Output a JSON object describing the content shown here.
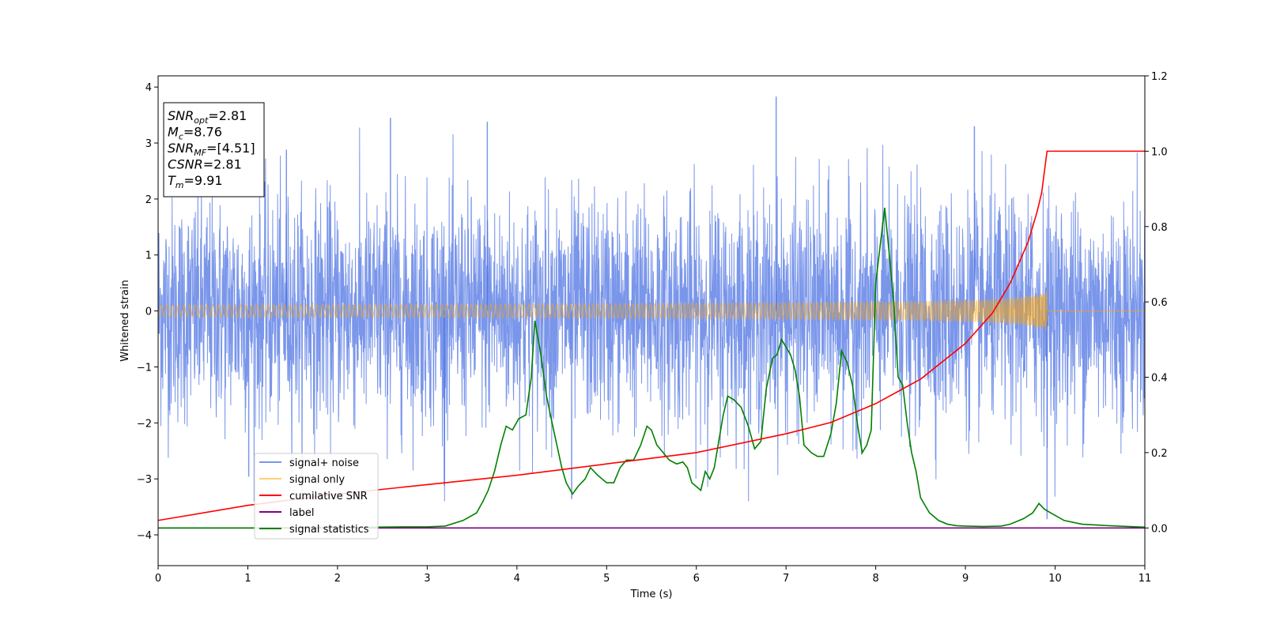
{
  "chart_data": {
    "type": "line",
    "xlabel": "Time (s)",
    "ylabel": "Whitened strain",
    "xlim": [
      0,
      11
    ],
    "ylim_left": [
      -4.55,
      4.2
    ],
    "ylim_right": [
      -0.1,
      1.2
    ],
    "x_ticks": [
      "0",
      "1",
      "2",
      "3",
      "4",
      "5",
      "6",
      "7",
      "8",
      "9",
      "10",
      "11"
    ],
    "y_left_ticks": [
      "4",
      "3",
      "2",
      "1",
      "0",
      "−1",
      "−2",
      "−3",
      "−4"
    ],
    "y_right_ticks": [
      "1.2",
      "1.0",
      "0.8",
      "0.6",
      "0.4",
      "0.2",
      "0.0"
    ],
    "grid": false,
    "legend_position": "lower-left",
    "annotation": {
      "lines": [
        {
          "base": "SNR",
          "sub": "opt",
          "value": "=2.81"
        },
        {
          "base": "M",
          "sub": "c",
          "value": "=8.76"
        },
        {
          "base": "SNR",
          "sub": "MF",
          "value": "=[4.51]"
        },
        {
          "base": "CSNR",
          "sub": "",
          "value": "=2.81"
        },
        {
          "base": "T",
          "sub": "m",
          "value": "=9.91"
        }
      ]
    },
    "series": [
      {
        "name": "signal+ noise",
        "axis": "left",
        "color": "#4169e1",
        "kind": "noise",
        "amplitude_sigma": 1.0,
        "peak_examples": [
          [
            1.43,
            2.88
          ],
          [
            2.59,
            3.45
          ],
          [
            3.67,
            3.38
          ],
          [
            6.89,
            3.83
          ],
          [
            9.1,
            3.3
          ],
          [
            1.01,
            -2.96
          ],
          [
            3.19,
            -3.12
          ],
          [
            4.61,
            -3.36
          ],
          [
            9.91,
            -3.72
          ]
        ]
      },
      {
        "name": "signal only",
        "axis": "left",
        "color": "#ffa500",
        "kind": "chirp",
        "merger_time": 9.91,
        "max_amplitude": 0.4
      },
      {
        "name": "cumilative SNR",
        "axis": "right",
        "color": "#ff0000",
        "x": [
          0,
          1,
          2,
          3,
          4,
          5,
          6,
          7,
          7.5,
          8,
          8.5,
          9,
          9.3,
          9.5,
          9.7,
          9.8,
          9.85,
          9.91,
          11
        ],
        "y": [
          0.02,
          0.06,
          0.09,
          0.115,
          0.14,
          0.17,
          0.2,
          0.25,
          0.28,
          0.33,
          0.395,
          0.49,
          0.57,
          0.65,
          0.76,
          0.84,
          0.89,
          1.0,
          1.0
        ]
      },
      {
        "name": "label",
        "axis": "right",
        "color": "#800080",
        "x": [
          0,
          11
        ],
        "y": [
          0.0,
          0.0
        ]
      },
      {
        "name": "signal statistics",
        "axis": "right",
        "color": "#008000",
        "x": [
          0,
          1,
          2,
          2.8,
          3.0,
          3.2,
          3.4,
          3.55,
          3.62,
          3.68,
          3.75,
          3.82,
          3.88,
          3.95,
          4.02,
          4.1,
          4.16,
          4.2,
          4.26,
          4.33,
          4.4,
          4.5,
          4.55,
          4.62,
          4.68,
          4.76,
          4.82,
          4.9,
          5.0,
          5.08,
          5.15,
          5.22,
          5.3,
          5.38,
          5.45,
          5.5,
          5.56,
          5.63,
          5.7,
          5.78,
          5.85,
          5.9,
          5.95,
          6.0,
          6.05,
          6.1,
          6.15,
          6.2,
          6.25,
          6.3,
          6.35,
          6.42,
          6.5,
          6.58,
          6.65,
          6.72,
          6.78,
          6.85,
          6.9,
          6.95,
          7.0,
          7.05,
          7.1,
          7.15,
          7.2,
          7.28,
          7.35,
          7.42,
          7.5,
          7.56,
          7.62,
          7.68,
          7.74,
          7.8,
          7.85,
          7.9,
          7.95,
          8.0,
          8.05,
          8.1,
          8.15,
          8.2,
          8.25,
          8.3,
          8.35,
          8.4,
          8.45,
          8.5,
          8.6,
          8.7,
          8.8,
          8.9,
          9.0,
          9.2,
          9.4,
          9.5,
          9.6,
          9.65,
          9.75,
          9.82,
          9.88,
          9.95,
          10.1,
          10.3,
          10.6,
          11
        ],
        "y": [
          0.0,
          0.0,
          0.001,
          0.003,
          0.003,
          0.005,
          0.02,
          0.04,
          0.07,
          0.1,
          0.15,
          0.22,
          0.27,
          0.26,
          0.29,
          0.3,
          0.4,
          0.55,
          0.47,
          0.35,
          0.27,
          0.16,
          0.12,
          0.09,
          0.11,
          0.13,
          0.16,
          0.14,
          0.12,
          0.12,
          0.16,
          0.18,
          0.18,
          0.22,
          0.27,
          0.26,
          0.22,
          0.2,
          0.18,
          0.17,
          0.175,
          0.16,
          0.12,
          0.11,
          0.1,
          0.15,
          0.13,
          0.16,
          0.23,
          0.3,
          0.35,
          0.34,
          0.32,
          0.27,
          0.21,
          0.23,
          0.37,
          0.45,
          0.46,
          0.5,
          0.48,
          0.46,
          0.42,
          0.35,
          0.22,
          0.2,
          0.19,
          0.19,
          0.25,
          0.33,
          0.47,
          0.44,
          0.38,
          0.27,
          0.2,
          0.22,
          0.26,
          0.65,
          0.75,
          0.85,
          0.73,
          0.6,
          0.4,
          0.38,
          0.28,
          0.2,
          0.15,
          0.08,
          0.04,
          0.02,
          0.01,
          0.006,
          0.005,
          0.004,
          0.005,
          0.01,
          0.02,
          0.025,
          0.04,
          0.065,
          0.05,
          0.04,
          0.02,
          0.01,
          0.006,
          0.002
        ]
      }
    ]
  }
}
